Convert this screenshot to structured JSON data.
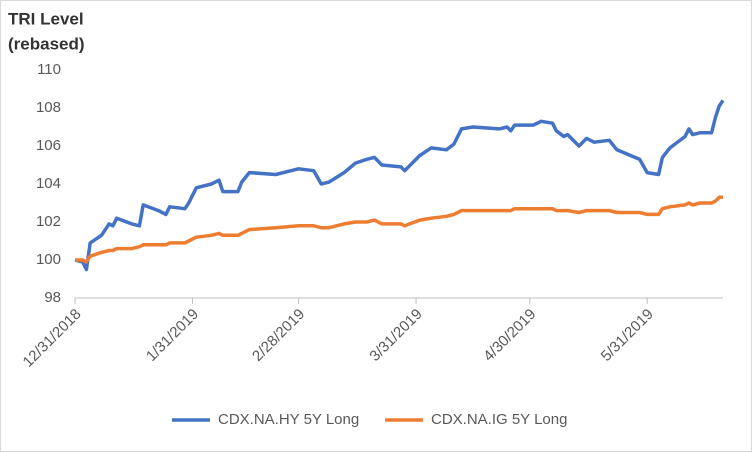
{
  "chart_data": {
    "type": "line",
    "ylabel_lines": [
      "TRI Level",
      "(rebased)"
    ],
    "x": [
      "12/31/2018",
      "1/2/2019",
      "1/3/2019",
      "1/4/2019",
      "1/7/2019",
      "1/9/2019",
      "1/10/2019",
      "1/11/2019",
      "1/15/2019",
      "1/17/2019",
      "1/18/2019",
      "1/22/2019",
      "1/24/2019",
      "1/25/2019",
      "1/29/2019",
      "1/30/2019",
      "2/1/2019",
      "2/5/2019",
      "2/7/2019",
      "2/8/2019",
      "2/12/2019",
      "2/13/2019",
      "2/15/2019",
      "2/22/2019",
      "2/28/2019",
      "3/4/2019",
      "3/6/2019",
      "3/8/2019",
      "3/12/2019",
      "3/15/2019",
      "3/18/2019",
      "3/20/2019",
      "3/22/2019",
      "3/27/2019",
      "3/28/2019",
      "4/1/2019",
      "4/4/2019",
      "4/8/2019",
      "4/10/2019",
      "4/12/2019",
      "4/15/2019",
      "4/22/2019",
      "4/24/2019",
      "4/25/2019",
      "4/26/2019",
      "5/1/2019",
      "5/3/2019",
      "5/6/2019",
      "5/7/2019",
      "5/9/2019",
      "5/10/2019",
      "5/13/2019",
      "5/15/2019",
      "5/17/2019",
      "5/21/2019",
      "5/23/2019",
      "5/29/2019",
      "5/31/2019",
      "6/3/2019",
      "6/4/2019",
      "6/6/2019",
      "6/10/2019",
      "6/11/2019",
      "6/12/2019",
      "6/14/2019",
      "6/17/2019",
      "6/18/2019",
      "6/19/2019",
      "6/20/2019"
    ],
    "series": [
      {
        "name": "CDX.NA.HY 5Y Long",
        "color": "#4472c4",
        "values": [
          100.0,
          99.9,
          99.5,
          100.9,
          101.3,
          101.9,
          101.8,
          102.2,
          101.9,
          101.8,
          102.9,
          102.6,
          102.4,
          102.8,
          102.7,
          103.0,
          103.8,
          104.0,
          104.2,
          103.6,
          103.6,
          104.1,
          104.6,
          104.5,
          104.8,
          104.7,
          104.0,
          104.1,
          104.6,
          105.1,
          105.3,
          105.4,
          105.0,
          104.9,
          104.7,
          105.5,
          105.9,
          105.8,
          106.1,
          106.9,
          107.0,
          106.9,
          107.0,
          106.8,
          107.1,
          107.1,
          107.3,
          107.2,
          106.8,
          106.5,
          106.6,
          106.0,
          106.4,
          106.2,
          106.3,
          105.8,
          105.3,
          104.6,
          104.5,
          105.4,
          105.9,
          106.5,
          106.9,
          106.6,
          106.7,
          106.7,
          107.5,
          108.1,
          108.4
        ]
      },
      {
        "name": "CDX.NA.IG 5Y Long",
        "color": "#ed7d31",
        "values": [
          100.0,
          100.0,
          99.9,
          100.2,
          100.4,
          100.5,
          100.5,
          100.6,
          100.6,
          100.7,
          100.8,
          100.8,
          100.8,
          100.9,
          100.9,
          101.0,
          101.2,
          101.3,
          101.4,
          101.3,
          101.3,
          101.4,
          101.6,
          101.7,
          101.8,
          101.8,
          101.7,
          101.7,
          101.9,
          102.0,
          102.0,
          102.1,
          101.9,
          101.9,
          101.8,
          102.1,
          102.2,
          102.3,
          102.4,
          102.6,
          102.6,
          102.6,
          102.6,
          102.6,
          102.7,
          102.7,
          102.7,
          102.7,
          102.6,
          102.6,
          102.6,
          102.5,
          102.6,
          102.6,
          102.6,
          102.5,
          102.5,
          102.4,
          102.4,
          102.7,
          102.8,
          102.9,
          103.0,
          102.9,
          103.0,
          103.0,
          103.1,
          103.3,
          103.3
        ]
      }
    ],
    "xlim": [
      "12/31/2018",
      "6/20/2019"
    ],
    "xticks": [
      "12/31/2018",
      "1/31/2019",
      "2/28/2019",
      "3/31/2019",
      "4/30/2019",
      "5/31/2019"
    ],
    "ylim": [
      98,
      110
    ],
    "yticks": [
      98,
      100,
      102,
      104,
      106,
      108,
      110
    ],
    "grid": false,
    "legend": "bottom"
  }
}
